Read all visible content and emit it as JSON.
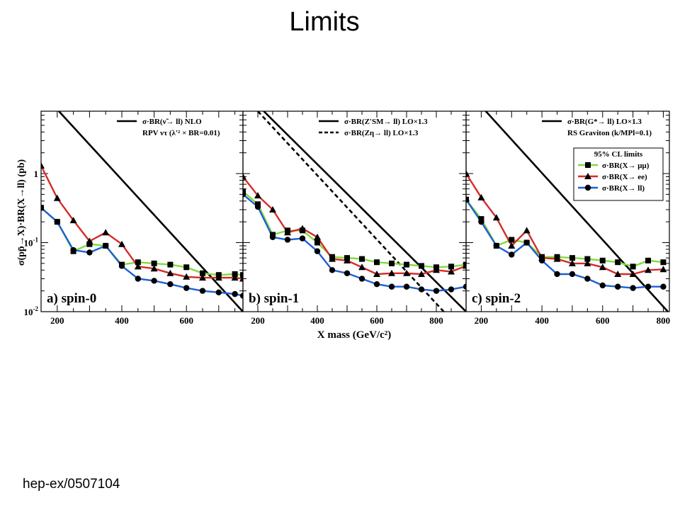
{
  "slide": {
    "title": "Limits",
    "reference": "hep-ex/0507104"
  },
  "figure": {
    "ylabel": "σ(pp̄→X)·BR(X→ll) (pb)",
    "xlabel": "X mass (GeV/c²)",
    "colors": {
      "mumu": "#7fdc3a",
      "ee": "#d42a2a",
      "ll": "#1f5fd6",
      "theory": "#000000"
    }
  },
  "chart_data": [
    {
      "type": "line",
      "panel_label": "a) spin-0",
      "xlim": [
        150,
        775
      ],
      "ylim": [
        0.01,
        8
      ],
      "yscale": "log",
      "xticks": [
        200,
        400,
        600
      ],
      "yticks": [
        {
          "value": 1,
          "label": "1"
        },
        {
          "value": 0.1,
          "label": "10-1"
        },
        {
          "value": 0.01,
          "label": "10-2"
        }
      ],
      "legend": {
        "entries": [
          "σ·BR(ν̃→ ll) NLO",
          "RPV ντ (λ'² × BR=0.01)"
        ],
        "position": "top-right"
      },
      "theory": [
        {
          "name": "σ·BR(ν̃→ ll) NLO",
          "dashed": false,
          "x": [
            205,
            775
          ],
          "y": [
            8,
            0.01
          ]
        }
      ],
      "series": [
        {
          "key": "mumu",
          "marker": "square",
          "x": [
            150,
            200,
            250,
            300,
            350,
            400,
            450,
            500,
            550,
            600,
            650,
            700,
            750,
            775
          ],
          "y": [
            0.32,
            0.2,
            0.075,
            0.095,
            0.09,
            0.048,
            0.052,
            0.05,
            0.048,
            0.044,
            0.036,
            0.034,
            0.035,
            0.034
          ]
        },
        {
          "key": "ee",
          "marker": "triangle",
          "x": [
            150,
            200,
            250,
            300,
            350,
            400,
            450,
            500,
            550,
            600,
            650,
            700,
            750,
            775
          ],
          "y": [
            1.3,
            0.44,
            0.21,
            0.105,
            0.14,
            0.095,
            0.045,
            0.042,
            0.036,
            0.032,
            0.031,
            0.031,
            0.031,
            0.03
          ]
        },
        {
          "key": "ll",
          "marker": "circle",
          "x": [
            150,
            200,
            250,
            300,
            350,
            400,
            450,
            500,
            550,
            600,
            650,
            700,
            750,
            775
          ],
          "y": [
            0.32,
            0.2,
            0.078,
            0.072,
            0.09,
            0.046,
            0.03,
            0.028,
            0.025,
            0.022,
            0.02,
            0.019,
            0.018,
            0.017
          ]
        }
      ]
    },
    {
      "type": "line",
      "panel_label": "b) spin-1",
      "xlim": [
        150,
        900
      ],
      "ylim": [
        0.01,
        8
      ],
      "yscale": "log",
      "xticks": [
        200,
        400,
        600,
        800
      ],
      "yticks": [],
      "legend": {
        "entries": [
          "σ·BR(Z'SM→ ll) LO×1.3",
          "σ·BR(Zη→ ll) LO×1.3"
        ],
        "position": "top-right"
      },
      "theory": [
        {
          "name": "σ·BR(Z'SM→ ll) LO×1.3",
          "dashed": false,
          "x": [
            220,
            900
          ],
          "y": [
            8,
            0.01
          ]
        },
        {
          "name": "σ·BR(Zη→ ll) LO×1.3",
          "dashed": true,
          "x": [
            200,
            825
          ],
          "y": [
            8,
            0.01
          ]
        }
      ],
      "series": [
        {
          "key": "mumu",
          "marker": "square",
          "x": [
            150,
            200,
            250,
            300,
            350,
            400,
            450,
            500,
            550,
            600,
            650,
            700,
            750,
            800,
            850,
            900
          ],
          "y": [
            0.55,
            0.36,
            0.13,
            0.15,
            0.15,
            0.1,
            0.062,
            0.06,
            0.058,
            0.052,
            0.05,
            0.048,
            0.046,
            0.044,
            0.045,
            0.048
          ]
        },
        {
          "key": "ee",
          "marker": "triangle",
          "x": [
            150,
            200,
            250,
            300,
            350,
            400,
            450,
            500,
            550,
            600,
            650,
            700,
            750,
            800,
            850,
            900
          ],
          "y": [
            0.9,
            0.48,
            0.3,
            0.14,
            0.16,
            0.12,
            0.058,
            0.055,
            0.044,
            0.035,
            0.036,
            0.036,
            0.035,
            0.04,
            0.038,
            0.046
          ]
        },
        {
          "key": "ll",
          "marker": "circle",
          "x": [
            150,
            200,
            250,
            300,
            350,
            400,
            450,
            500,
            550,
            600,
            650,
            700,
            750,
            800,
            850,
            900
          ],
          "y": [
            0.5,
            0.33,
            0.12,
            0.11,
            0.115,
            0.075,
            0.04,
            0.036,
            0.03,
            0.025,
            0.023,
            0.023,
            0.021,
            0.02,
            0.021,
            0.023
          ]
        }
      ]
    },
    {
      "type": "line",
      "panel_label": "c) spin-2",
      "xlim": [
        150,
        820
      ],
      "ylim": [
        0.01,
        8
      ],
      "yscale": "log",
      "xticks": [
        200,
        400,
        600,
        800
      ],
      "yticks": [],
      "legend": {
        "entries": [
          "σ·BR(G*→ ll) LO×1.3",
          "RS Graviton (k/MPl=0.1)"
        ],
        "position": "top-right",
        "limits_box": {
          "title": "95% CL limits",
          "entries": [
            "σ·BR(X→ μμ)",
            "σ·BR(X→ ee)",
            "σ·BR(X→ ll)"
          ]
        }
      },
      "theory": [
        {
          "name": "σ·BR(G*→ ll) LO×1.3",
          "dashed": false,
          "x": [
            215,
            815
          ],
          "y": [
            8,
            0.01
          ]
        }
      ],
      "series": [
        {
          "key": "mumu",
          "marker": "square",
          "x": [
            150,
            200,
            250,
            300,
            350,
            400,
            450,
            500,
            550,
            600,
            650,
            700,
            750,
            800
          ],
          "y": [
            0.42,
            0.22,
            0.09,
            0.11,
            0.1,
            0.062,
            0.062,
            0.06,
            0.058,
            0.055,
            0.052,
            0.045,
            0.055,
            0.052
          ]
        },
        {
          "key": "ee",
          "marker": "triangle",
          "x": [
            150,
            200,
            250,
            300,
            350,
            400,
            450,
            500,
            550,
            600,
            650,
            700,
            750,
            800
          ],
          "y": [
            1.0,
            0.45,
            0.23,
            0.09,
            0.15,
            0.06,
            0.058,
            0.05,
            0.05,
            0.044,
            0.035,
            0.035,
            0.04,
            0.041
          ]
        },
        {
          "key": "ll",
          "marker": "circle",
          "x": [
            150,
            200,
            250,
            300,
            350,
            400,
            450,
            500,
            550,
            600,
            650,
            700,
            750,
            800
          ],
          "y": [
            0.42,
            0.2,
            0.09,
            0.067,
            0.1,
            0.055,
            0.035,
            0.035,
            0.03,
            0.024,
            0.023,
            0.022,
            0.023,
            0.023
          ]
        }
      ]
    }
  ]
}
